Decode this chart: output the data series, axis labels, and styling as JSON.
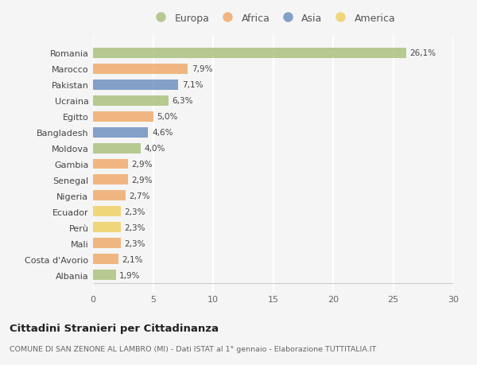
{
  "categories": [
    "Romania",
    "Marocco",
    "Pakistan",
    "Ucraina",
    "Egitto",
    "Bangladesh",
    "Moldova",
    "Gambia",
    "Senegal",
    "Nigeria",
    "Ecuador",
    "Perù",
    "Mali",
    "Costa d'Avorio",
    "Albania"
  ],
  "values": [
    26.1,
    7.9,
    7.1,
    6.3,
    5.0,
    4.6,
    4.0,
    2.9,
    2.9,
    2.7,
    2.3,
    2.3,
    2.3,
    2.1,
    1.9
  ],
  "labels": [
    "26,1%",
    "7,9%",
    "7,1%",
    "6,3%",
    "5,0%",
    "4,6%",
    "4,0%",
    "2,9%",
    "2,9%",
    "2,7%",
    "2,3%",
    "2,3%",
    "2,3%",
    "2,1%",
    "1,9%"
  ],
  "continents": [
    "Europa",
    "Africa",
    "Asia",
    "Europa",
    "Africa",
    "Asia",
    "Europa",
    "Africa",
    "Africa",
    "Africa",
    "America",
    "America",
    "Africa",
    "Africa",
    "Europa"
  ],
  "continent_colors": {
    "Europa": "#a8c07a",
    "Africa": "#f0a868",
    "Asia": "#6b8cbf",
    "America": "#f0d060"
  },
  "legend_order": [
    "Europa",
    "Africa",
    "Asia",
    "America"
  ],
  "title": "Cittadini Stranieri per Cittadinanza",
  "subtitle": "COMUNE DI SAN ZENONE AL LAMBRO (MI) - Dati ISTAT al 1° gennaio - Elaborazione TUTTITALIA.IT",
  "xlim": [
    0,
    30
  ],
  "xticks": [
    0,
    5,
    10,
    15,
    20,
    25,
    30
  ],
  "background_color": "#f5f5f5",
  "grid_color": "#ffffff",
  "bar_height": 0.65,
  "bar_alpha": 0.82
}
